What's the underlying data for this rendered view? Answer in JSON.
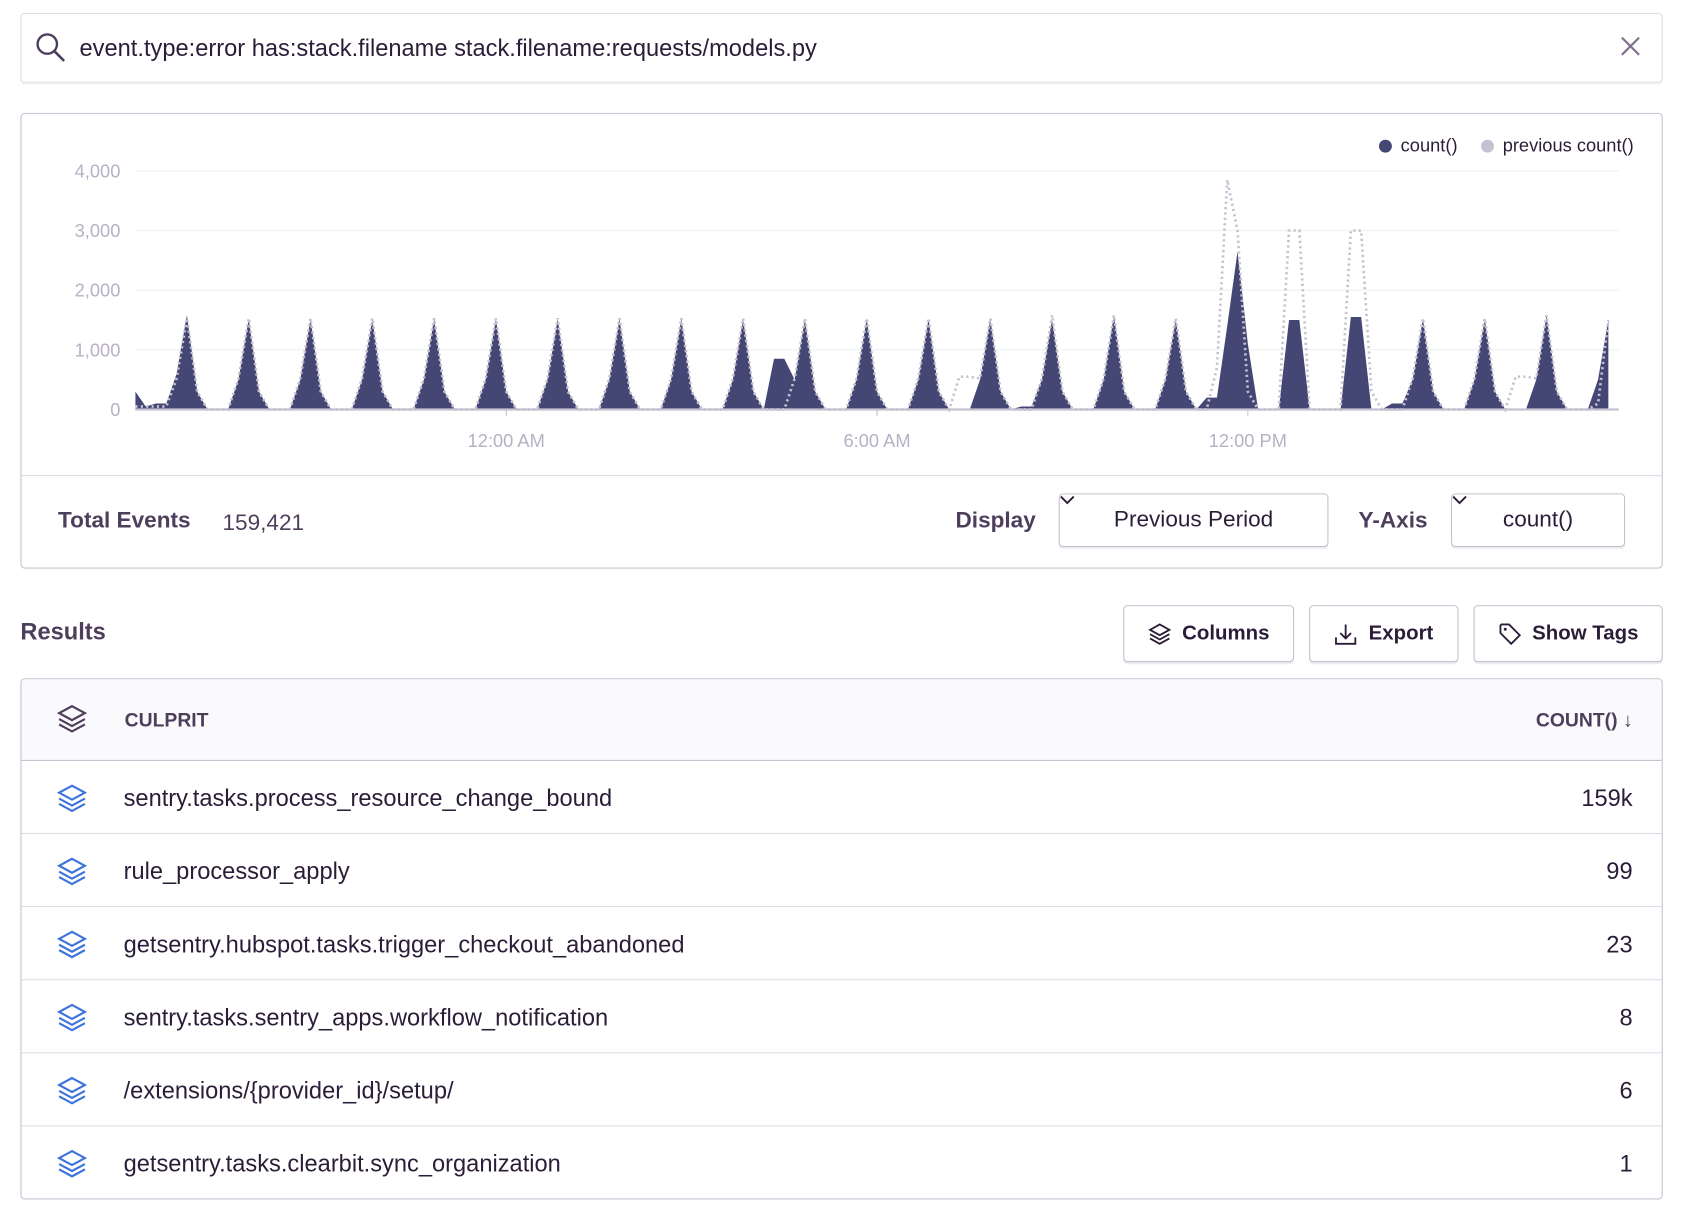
{
  "search": {
    "query": "event.type:error has:stack.filename stack.filename:requests/models.py",
    "icon": "search-icon",
    "clear_icon": "close-icon"
  },
  "chart": {
    "legend": [
      {
        "label": "count()",
        "color": "#444674"
      },
      {
        "label": "previous count()",
        "color": "#c6c0d0"
      }
    ],
    "footer": {
      "total_label": "Total Events",
      "total_value": "159,421",
      "display_label": "Display",
      "display_value": "Previous Period",
      "yaxis_label": "Y-Axis",
      "yaxis_value": "count()"
    }
  },
  "chart_data": {
    "type": "area",
    "x_start": "6:00 PM",
    "interval_minutes": 10,
    "x_ticks": [
      {
        "label": "12:00 AM",
        "time": "00:00"
      },
      {
        "label": "6:00 AM",
        "time": "06:00"
      },
      {
        "label": "12:00 PM",
        "time": "12:00"
      }
    ],
    "y_ticks": [
      {
        "label": "0",
        "value": 0
      },
      {
        "label": "1,000",
        "value": 1000
      },
      {
        "label": "2,000",
        "value": 2000
      },
      {
        "label": "3,000",
        "value": 3000
      },
      {
        "label": "4,000",
        "value": 4000
      }
    ],
    "ylim": [
      0,
      4000
    ],
    "grid": true,
    "legend_placement": "top-right",
    "series": [
      {
        "name": "count()",
        "style": "filled-area",
        "color": "#444674",
        "values": [
          300,
          50,
          100,
          100,
          600,
          1580,
          300,
          0,
          0,
          0,
          500,
          1520,
          300,
          0,
          0,
          0,
          500,
          1520,
          300,
          0,
          0,
          0,
          500,
          1520,
          300,
          0,
          0,
          0,
          500,
          1520,
          300,
          0,
          0,
          0,
          500,
          1520,
          300,
          0,
          0,
          0,
          500,
          1520,
          300,
          0,
          0,
          0,
          500,
          1520,
          300,
          0,
          0,
          0,
          500,
          1520,
          300,
          0,
          0,
          0,
          500,
          1520,
          300,
          0,
          850,
          850,
          500,
          1520,
          300,
          0,
          0,
          0,
          500,
          1520,
          300,
          0,
          0,
          0,
          500,
          1520,
          300,
          0,
          0,
          0,
          500,
          1520,
          300,
          0,
          50,
          50,
          500,
          1520,
          300,
          0,
          0,
          0,
          500,
          1580,
          300,
          0,
          0,
          0,
          500,
          1520,
          300,
          0,
          200,
          200,
          1400,
          2650,
          1100,
          0,
          0,
          0,
          1500,
          1500,
          0,
          0,
          0,
          0,
          1550,
          1550,
          0,
          0,
          100,
          100,
          500,
          1520,
          300,
          0,
          0,
          0,
          500,
          1520,
          300,
          0,
          0,
          0,
          500,
          1580,
          300,
          0,
          0,
          0,
          500,
          1500
        ]
      },
      {
        "name": "previous count()",
        "style": "dotted-line",
        "color": "#c6c0d0",
        "values": [
          50,
          50,
          50,
          50,
          520,
          1530,
          300,
          0,
          0,
          0,
          520,
          1530,
          300,
          0,
          0,
          0,
          520,
          1530,
          300,
          0,
          0,
          0,
          520,
          1530,
          300,
          0,
          0,
          0,
          520,
          1530,
          300,
          0,
          0,
          0,
          520,
          1530,
          300,
          0,
          0,
          0,
          520,
          1530,
          300,
          0,
          0,
          0,
          520,
          1530,
          300,
          0,
          0,
          0,
          520,
          1530,
          300,
          0,
          0,
          0,
          520,
          1530,
          300,
          0,
          0,
          0,
          520,
          1530,
          300,
          0,
          0,
          0,
          520,
          1530,
          300,
          0,
          0,
          0,
          520,
          1530,
          300,
          0,
          550,
          550,
          520,
          1530,
          300,
          0,
          0,
          0,
          520,
          1580,
          300,
          0,
          0,
          0,
          520,
          1580,
          300,
          0,
          0,
          0,
          520,
          1530,
          300,
          0,
          0,
          700,
          3850,
          3000,
          300,
          0,
          0,
          0,
          3000,
          3000,
          0,
          0,
          0,
          0,
          3000,
          3000,
          300,
          0,
          0,
          0,
          520,
          1530,
          300,
          0,
          0,
          0,
          520,
          1530,
          300,
          0,
          550,
          550,
          520,
          1580,
          300,
          0,
          0,
          0,
          100,
          1500
        ]
      }
    ]
  },
  "results": {
    "title": "Results",
    "buttons": [
      {
        "label": "Columns",
        "icon": "stack-icon"
      },
      {
        "label": "Export",
        "icon": "download-icon"
      },
      {
        "label": "Show Tags",
        "icon": "tag-icon"
      }
    ],
    "columns": {
      "culprit": "CULPRIT",
      "count": "COUNT() ↓"
    },
    "rows": [
      {
        "culprit": "sentry.tasks.process_resource_change_bound",
        "count": "159k"
      },
      {
        "culprit": "rule_processor_apply",
        "count": "99"
      },
      {
        "culprit": "getsentry.hubspot.tasks.trigger_checkout_abandoned",
        "count": "23"
      },
      {
        "culprit": "sentry.tasks.sentry_apps.workflow_notification",
        "count": "8"
      },
      {
        "culprit": "/extensions/{provider_id}/setup/",
        "count": "6"
      },
      {
        "culprit": "getsentry.tasks.clearbit.sync_organization",
        "count": "1"
      }
    ]
  }
}
